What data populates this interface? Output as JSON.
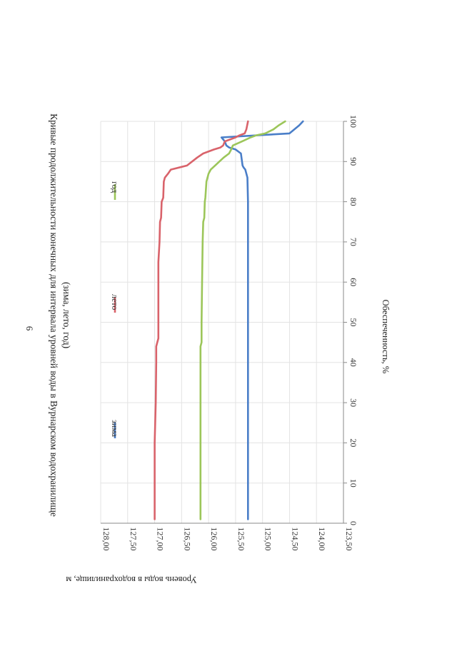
{
  "page_number": "6",
  "chart_data": {
    "type": "line",
    "title": "Кривые продолжительности конечных для интервала уровней воды в Вурнарском водохранилище",
    "subtitle": "(зима, лето, год)",
    "xlabel": "Обеспеченность, %",
    "ylabel": "Уровень воды в водохранилище, м",
    "xlim": [
      0,
      100
    ],
    "ylim": [
      123.5,
      128.0
    ],
    "x_ticks": [
      "0",
      "10",
      "20",
      "30",
      "40",
      "50",
      "60",
      "70",
      "80",
      "90",
      "100"
    ],
    "y_ticks": [
      "128,00",
      "127,50",
      "127,00",
      "126,50",
      "126,00",
      "125,50",
      "125,00",
      "124,50",
      "124,00",
      "123,50"
    ],
    "grid": true,
    "legend_position": "top",
    "series": [
      {
        "name": "зима",
        "color": "#4a7ec8",
        "x": [
          1,
          10,
          20,
          30,
          40,
          50,
          60,
          70,
          80,
          86,
          87,
          88,
          88.5,
          89,
          92,
          93,
          93.5,
          94,
          95,
          96,
          97,
          98,
          99,
          100
        ],
        "y": [
          125.27,
          125.27,
          125.27,
          125.27,
          125.27,
          125.27,
          125.27,
          125.27,
          125.27,
          125.28,
          125.3,
          125.32,
          125.35,
          125.37,
          125.4,
          125.5,
          125.62,
          125.67,
          125.7,
          125.76,
          124.5,
          124.41,
          124.32,
          124.25
        ]
      },
      {
        "name": "лето",
        "color": "#d9636b",
        "x": [
          1,
          10,
          20,
          30,
          40,
          44,
          45,
          46,
          50,
          55,
          60,
          65,
          70,
          75,
          76,
          80,
          81,
          85,
          86,
          87,
          88,
          89,
          91,
          92,
          93,
          93.5,
          94,
          95,
          96,
          96.5,
          97,
          98,
          100
        ],
        "y": [
          127.0,
          127.0,
          127.0,
          126.98,
          126.97,
          126.97,
          126.95,
          126.93,
          126.93,
          126.93,
          126.93,
          126.93,
          126.91,
          126.9,
          126.88,
          126.87,
          126.84,
          126.83,
          126.81,
          126.75,
          126.7,
          126.4,
          126.21,
          126.1,
          125.9,
          125.78,
          125.73,
          125.7,
          125.5,
          125.43,
          125.33,
          125.3,
          125.27
        ]
      },
      {
        "name": "год",
        "color": "#9cc65a",
        "x": [
          1,
          10,
          20,
          30,
          40,
          44,
          45,
          50,
          60,
          70,
          75,
          76,
          80,
          81,
          85,
          86,
          87,
          88,
          89,
          90,
          91,
          92,
          93,
          94,
          95,
          96,
          96.5,
          97,
          98,
          99,
          100
        ],
        "y": [
          126.15,
          126.15,
          126.15,
          126.15,
          126.15,
          126.15,
          126.13,
          126.13,
          126.12,
          126.11,
          126.1,
          126.08,
          126.07,
          126.06,
          126.04,
          126.02,
          126.0,
          125.96,
          125.88,
          125.8,
          125.72,
          125.62,
          125.58,
          125.55,
          125.38,
          125.22,
          125.12,
          124.95,
          124.8,
          124.7,
          124.58
        ]
      }
    ]
  }
}
